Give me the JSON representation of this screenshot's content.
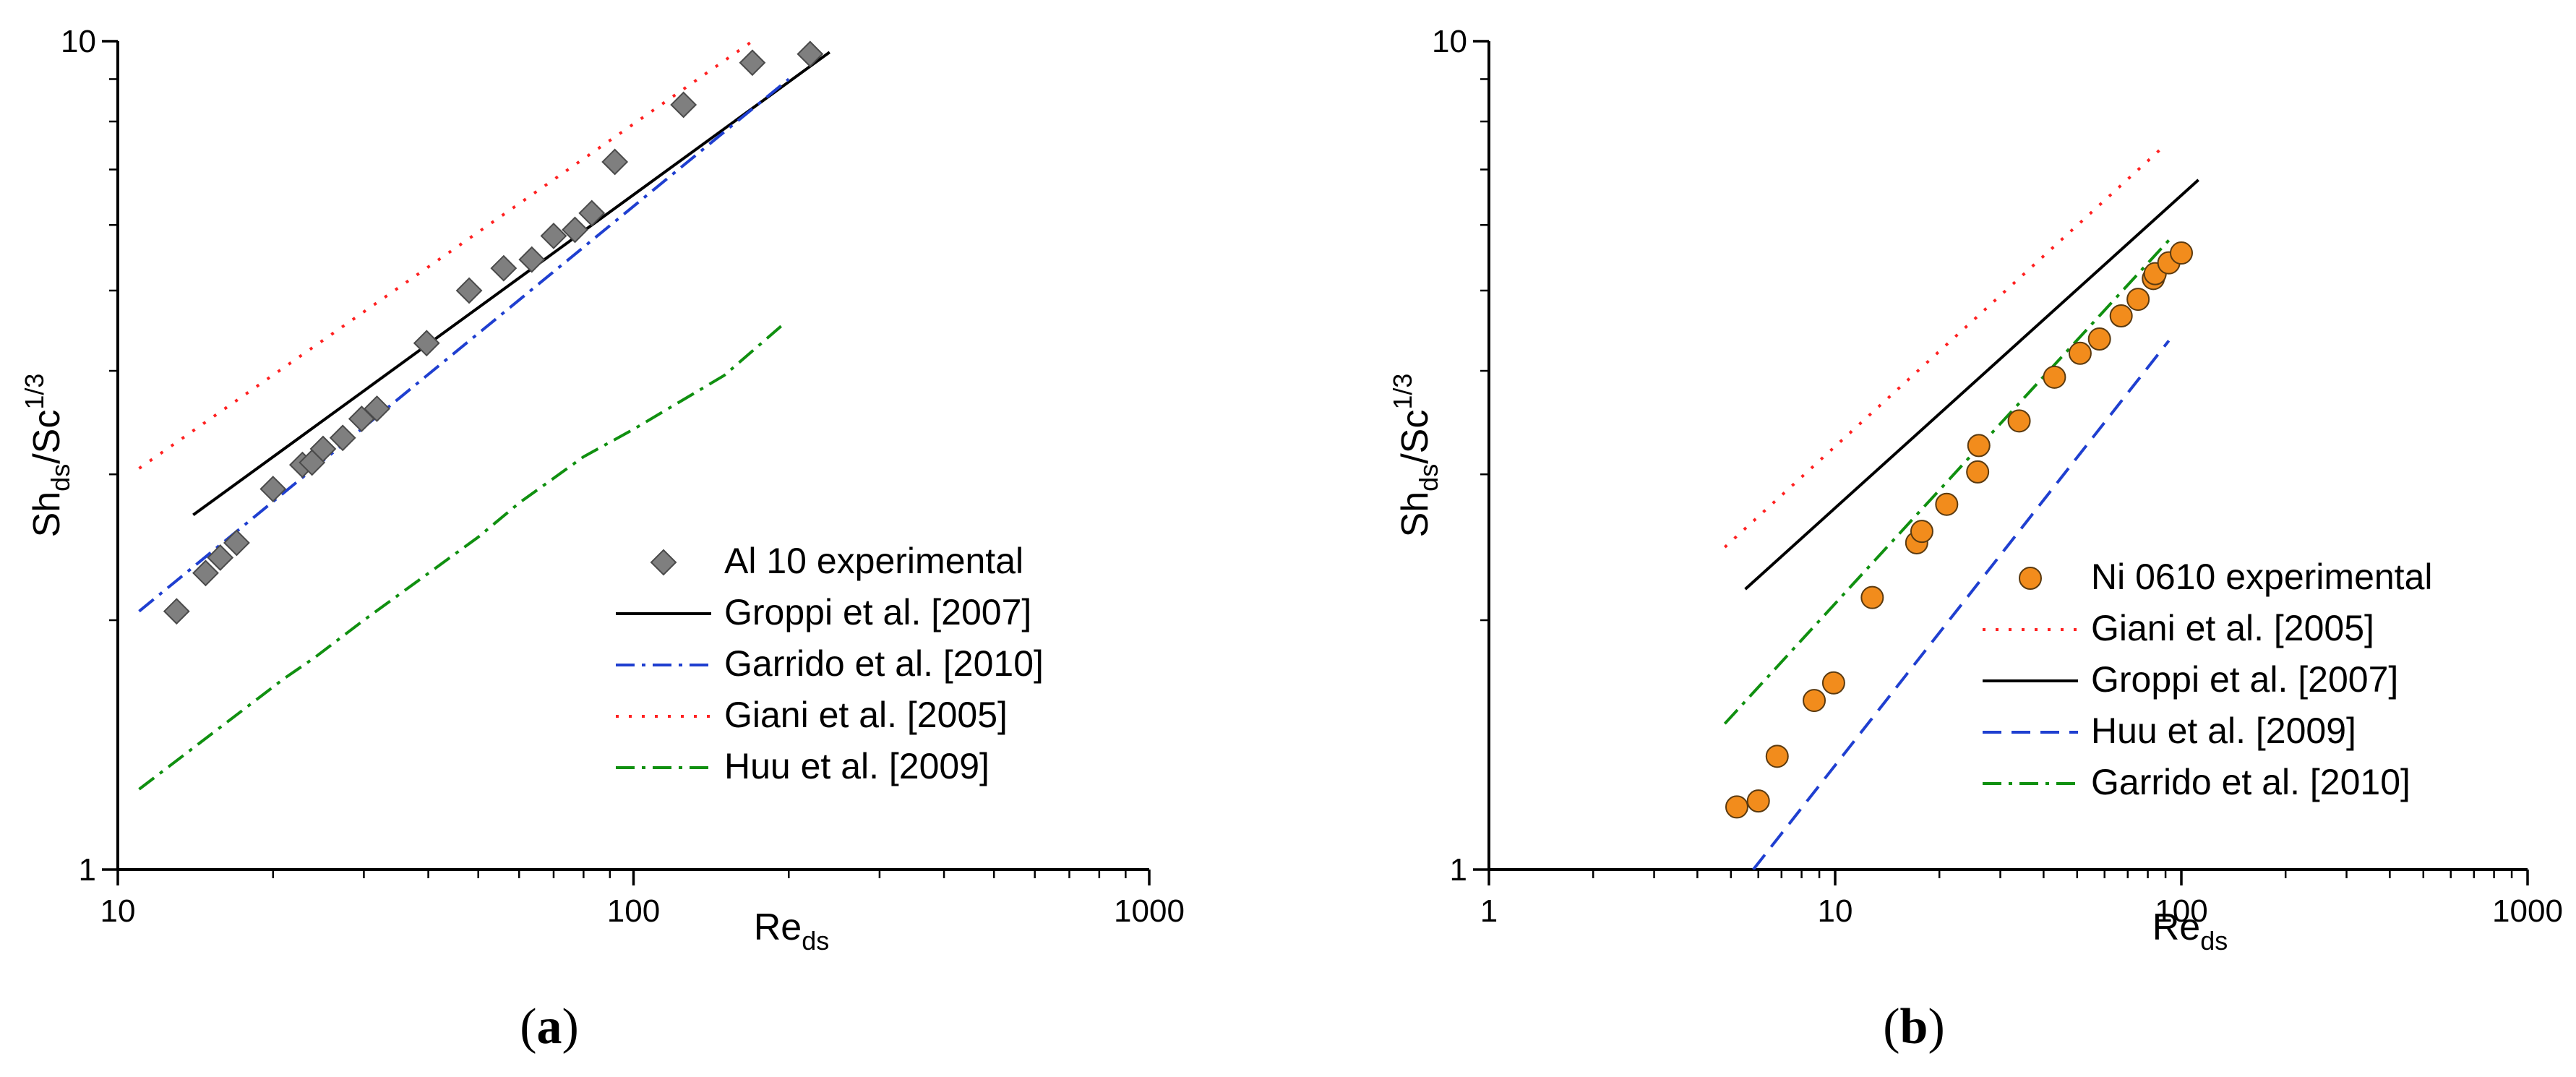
{
  "chart_data": [
    {
      "panel": "a",
      "type": "scatter",
      "caption": {
        "open": "(",
        "letter": "a",
        "close": ")"
      },
      "xscale": "log",
      "yscale": "log",
      "xlim": [
        10,
        1000
      ],
      "ylim": [
        1,
        10
      ],
      "xticks": [
        10,
        100,
        1000
      ],
      "yticks": [
        1,
        10
      ],
      "xlabel": {
        "base": "Re",
        "sub": "ds"
      },
      "ylabel": {
        "base": "Sh",
        "sub": "ds",
        "mid": "/Sc",
        "sup": "1/3"
      },
      "legend_position": "bottom-right",
      "series": [
        {
          "name": "Al 10 experimental",
          "kind": "markers",
          "marker": "diamond",
          "color": "#7f7f7f",
          "x": [
            13,
            14.8,
            15.8,
            17,
            20,
            22.8,
            23.8,
            25,
            27.3,
            29.7,
            31.8,
            39.7,
            48,
            56,
            63.5,
            70,
            77,
            83,
            92,
            125,
            170,
            220
          ],
          "y": [
            2.05,
            2.28,
            2.38,
            2.48,
            2.88,
            3.08,
            3.1,
            3.22,
            3.32,
            3.5,
            3.6,
            4.32,
            5.0,
            5.32,
            5.45,
            5.82,
            5.92,
            6.2,
            7.15,
            8.38,
            9.42,
            9.65
          ]
        },
        {
          "name": "Groppi et al. [2007]",
          "kind": "line",
          "dash": "solid",
          "color": "#000000",
          "x": [
            14,
            240
          ],
          "y": [
            2.68,
            9.7
          ]
        },
        {
          "name": "Garrido et al. [2010]",
          "kind": "line",
          "dash": "dashdot",
          "color": "#1f3fd0",
          "x": [
            11,
            200
          ],
          "y": [
            2.05,
            9.0
          ]
        },
        {
          "name": "Giani et al. [2005]",
          "kind": "line",
          "dash": "dotted",
          "color": "#ff2020",
          "x": [
            11,
            170
          ],
          "y": [
            3.05,
            10.0
          ]
        },
        {
          "name": "Huu et al. [2009]",
          "kind": "line",
          "dash": "dashdot",
          "color": "#109010",
          "x": [
            11,
            21,
            24,
            30,
            50,
            60,
            80,
            100,
            150,
            195
          ],
          "y": [
            1.25,
            1.7,
            1.8,
            2.0,
            2.52,
            2.77,
            3.15,
            3.4,
            3.95,
            4.55
          ]
        }
      ]
    },
    {
      "panel": "b",
      "type": "scatter",
      "caption": {
        "open": "(",
        "letter": "b",
        "close": ")"
      },
      "xscale": "log",
      "yscale": "log",
      "xlim": [
        1,
        1000
      ],
      "ylim": [
        1,
        10
      ],
      "xticks": [
        1,
        10,
        100,
        1000
      ],
      "yticks": [
        1,
        10
      ],
      "xlabel": {
        "base": "Re",
        "sub": "ds"
      },
      "ylabel": {
        "base": "Sh",
        "sub": "ds",
        "mid": "/Sc",
        "sup": "1/3"
      },
      "legend_position": "bottom-right",
      "series": [
        {
          "name": "Ni 0610 experimental",
          "kind": "markers",
          "marker": "circle",
          "color": "#f28c1c",
          "x": [
            5.2,
            6,
            6.8,
            8.7,
            9.9,
            12.8,
            17.2,
            17.8,
            21,
            25.8,
            26,
            34,
            43,
            51,
            58,
            67,
            75,
            83,
            84,
            92,
            100
          ],
          "y": [
            1.19,
            1.21,
            1.37,
            1.6,
            1.68,
            2.13,
            2.48,
            2.56,
            2.76,
            3.02,
            3.25,
            3.48,
            3.93,
            4.2,
            4.37,
            4.66,
            4.88,
            5.17,
            5.24,
            5.4,
            5.55
          ]
        },
        {
          "name": "Giani et al. [2005]",
          "kind": "line",
          "dash": "dotted",
          "color": "#ff2020",
          "x": [
            4.8,
            90
          ],
          "y": [
            2.45,
            7.5
          ]
        },
        {
          "name": "Groppi et al. [2007]",
          "kind": "line",
          "dash": "solid",
          "color": "#000000",
          "x": [
            5.5,
            112
          ],
          "y": [
            2.18,
            6.8
          ]
        },
        {
          "name": "Huu et al. [2009]",
          "kind": "line",
          "dash": "dashed",
          "color": "#1f3fd0",
          "x": [
            5.8,
            92
          ],
          "y": [
            1.0,
            4.35
          ]
        },
        {
          "name": "Garrido et al. [2010]",
          "kind": "line",
          "dash": "dashdot",
          "color": "#109010",
          "x": [
            4.8,
            92
          ],
          "y": [
            1.5,
            5.75
          ]
        }
      ]
    }
  ]
}
